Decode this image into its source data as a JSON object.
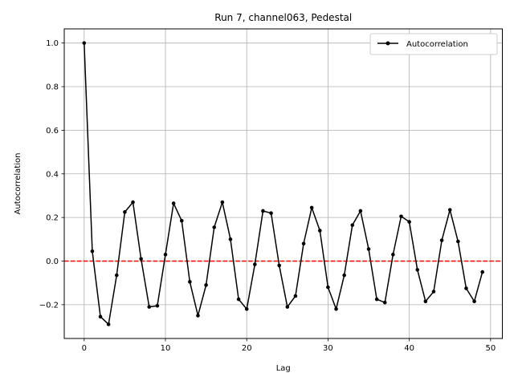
{
  "chart_data": {
    "type": "line",
    "title": "Run 7, channel063, Pedestal",
    "xlabel": "Lag",
    "ylabel": "Autocorrelation",
    "xlim": [
      -2.45,
      51.45
    ],
    "ylim": [
      -0.355,
      1.065
    ],
    "xticks": [
      0,
      10,
      20,
      30,
      40,
      50
    ],
    "yticks": [
      -0.2,
      0.0,
      0.2,
      0.4,
      0.6,
      0.8,
      1.0
    ],
    "xtick_labels": [
      "0",
      "10",
      "20",
      "30",
      "40",
      "50"
    ],
    "ytick_labels": [
      "−0.2",
      "0.0",
      "0.2",
      "0.4",
      "0.6",
      "0.8",
      "1.0"
    ],
    "grid": true,
    "legend_position": "top-right",
    "series": [
      {
        "name": "Autocorrelation",
        "color": "#000000",
        "marker": "circle",
        "x": [
          0,
          1,
          2,
          3,
          4,
          5,
          6,
          7,
          8,
          9,
          10,
          11,
          12,
          13,
          14,
          15,
          16,
          17,
          18,
          19,
          20,
          21,
          22,
          23,
          24,
          25,
          26,
          27,
          28,
          29,
          30,
          31,
          32,
          33,
          34,
          35,
          36,
          37,
          38,
          39,
          40,
          41,
          42,
          43,
          44,
          45,
          46,
          47,
          48,
          49
        ],
        "y": [
          1.0,
          0.045,
          -0.255,
          -0.29,
          -0.065,
          0.225,
          0.27,
          0.01,
          -0.21,
          -0.205,
          0.03,
          0.265,
          0.185,
          -0.095,
          -0.25,
          -0.11,
          0.155,
          0.27,
          0.1,
          -0.175,
          -0.22,
          -0.015,
          0.23,
          0.22,
          -0.02,
          -0.21,
          -0.16,
          0.08,
          0.245,
          0.14,
          -0.12,
          -0.22,
          -0.065,
          0.165,
          0.23,
          0.055,
          -0.175,
          -0.19,
          0.03,
          0.205,
          0.18,
          -0.04,
          -0.185,
          -0.14,
          0.095,
          0.235,
          0.09,
          -0.125,
          -0.185,
          -0.05
        ]
      }
    ],
    "reference_line": {
      "y": 0.0,
      "color": "#ff0000",
      "style": "dashed"
    }
  }
}
